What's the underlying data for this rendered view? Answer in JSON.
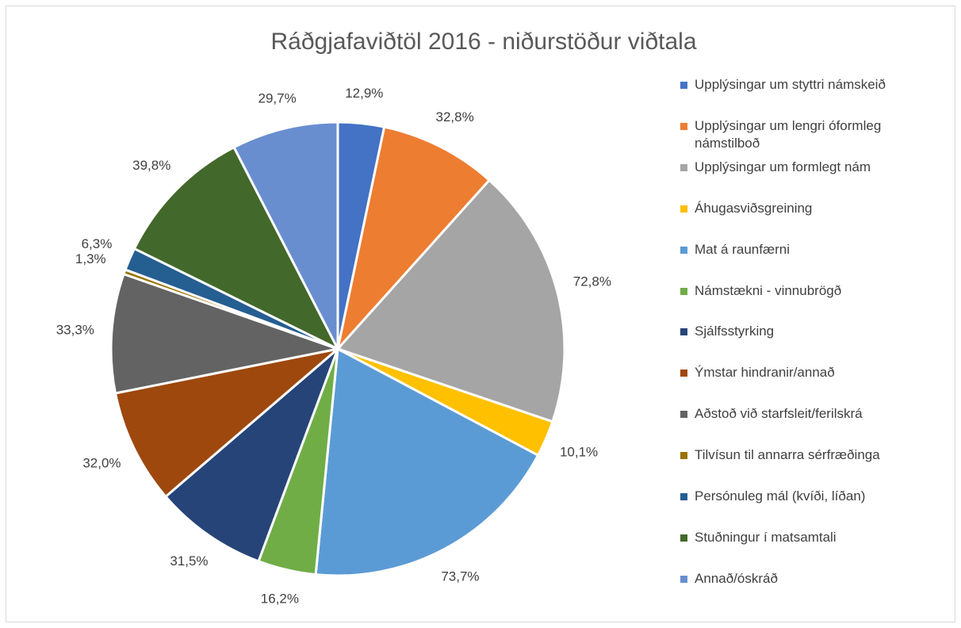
{
  "chart_data": {
    "type": "pie",
    "title": "Ráðgjafaviðtöl 2016 - niðurstöður viðtala",
    "categories": [
      "Upplýsingar um styttri námskeið",
      "Upplýsingar um lengri óformleg námstilboð",
      "Upplýsingar um formlegt nám",
      "Áhugasviðsgreining",
      "Mat á raunfærni",
      "Námstækni - vinnubrögð",
      "Sjálfsstyrking",
      "Ýmstar hindranir/annað",
      "Aðstoð við starfsleit/ferilskrá",
      "Tilvísun til annarra sérfræðinga",
      "Persónuleg mál (kvíði, líðan)",
      "Stuðningur í matsamtali",
      "Annað/óskráð"
    ],
    "values": [
      12.9,
      32.8,
      72.8,
      10.1,
      73.7,
      16.2,
      31.5,
      32.0,
      33.3,
      1.3,
      6.3,
      39.8,
      29.7
    ],
    "value_labels": [
      "12,9%",
      "32,8%",
      "72,8%",
      "10,1%",
      "73,7%",
      "16,2%",
      "31,5%",
      "32,0%",
      "33,3%",
      "1,3%",
      "6,3%",
      "39,8%",
      "29,7%"
    ],
    "colors": [
      "#4472c4",
      "#ed7d31",
      "#a5a5a5",
      "#ffc000",
      "#5b9bd5",
      "#70ad47",
      "#264478",
      "#9e480e",
      "#636363",
      "#997300",
      "#255e91",
      "#43682b",
      "#698ed0"
    ],
    "legend": "right"
  }
}
